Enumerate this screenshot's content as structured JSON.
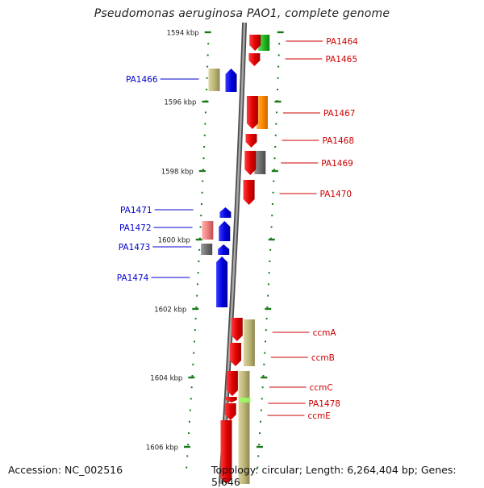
{
  "title": "Pseudomonas aeruginosa PAO1, complete genome",
  "accession_text": "Accession: NC_002516",
  "summary_text": "Topology: circular; Length: 6,264,404 bp; Genes: 5,646",
  "scale_labels": [
    "1594 kbp",
    "1596 kbp",
    "1598 kbp",
    "1600 kbp",
    "1602 kbp",
    "1604 kbp",
    "1606 kbp"
  ],
  "genes": [
    {
      "label": "PA1464",
      "strand": "forward",
      "color": "#cc0000"
    },
    {
      "label": "PA1465",
      "strand": "forward",
      "color": "#cc0000"
    },
    {
      "label": "PA1466",
      "strand": "reverse",
      "color": "#0000cc"
    },
    {
      "label": "PA1467",
      "strand": "forward",
      "color": "#cc0000"
    },
    {
      "label": "PA1468",
      "strand": "forward",
      "color": "#cc0000"
    },
    {
      "label": "PA1469",
      "strand": "forward",
      "color": "#cc0000"
    },
    {
      "label": "PA1470",
      "strand": "forward",
      "color": "#cc0000"
    },
    {
      "label": "PA1471",
      "strand": "reverse",
      "color": "#0000cc"
    },
    {
      "label": "PA1472",
      "strand": "reverse",
      "color": "#0000cc"
    },
    {
      "label": "PA1473",
      "strand": "reverse",
      "color": "#0000cc"
    },
    {
      "label": "PA1474",
      "strand": "reverse",
      "color": "#0000cc"
    },
    {
      "label": "ccmA",
      "strand": "forward",
      "color": "#cc0000"
    },
    {
      "label": "ccmB",
      "strand": "forward",
      "color": "#cc0000"
    },
    {
      "label": "ccmC",
      "strand": "forward",
      "color": "#cc0000"
    },
    {
      "label": "PA1478",
      "strand": "forward",
      "color": "#cc0000"
    },
    {
      "label": "ccmE",
      "strand": "forward",
      "color": "#cc0000"
    }
  ],
  "colors": {
    "backbone": "#7a7a7a",
    "forward_gene": "#e00000",
    "reverse_gene": "#0000dd",
    "scale_tick": "#1a7a1a",
    "cog_olive": "#bdb67a",
    "cog_green": "#33bb33",
    "cog_orange": "#ff8c00",
    "cog_gray": "#707070",
    "cog_pink": "#f08080",
    "cog_lightgreen": "#99ff66"
  }
}
